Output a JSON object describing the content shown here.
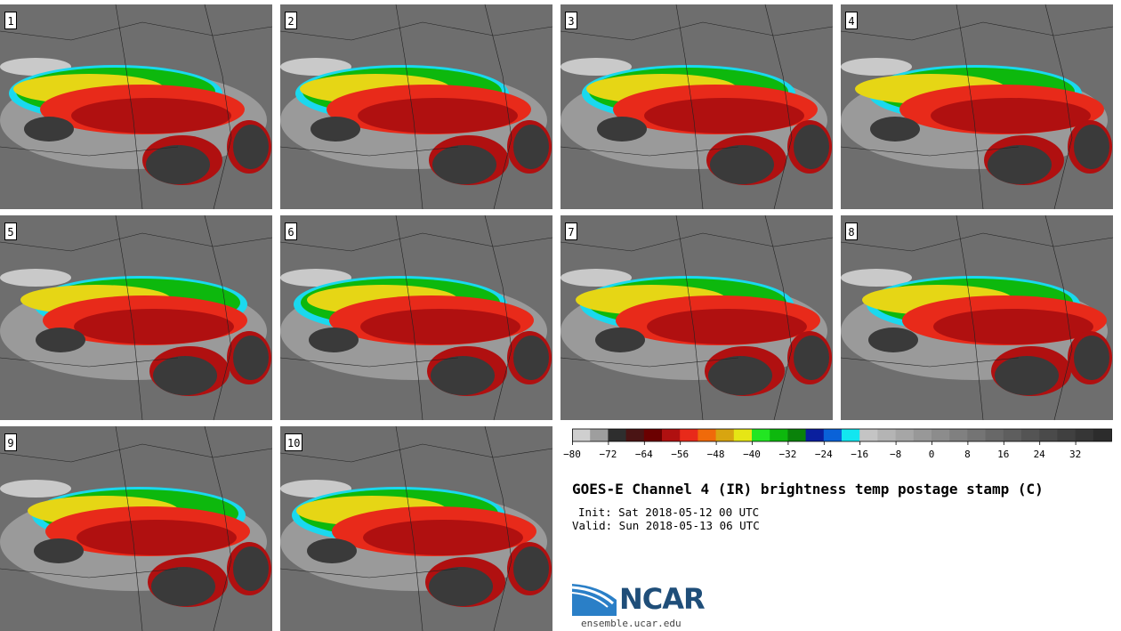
{
  "panels": [
    {
      "label": "1"
    },
    {
      "label": "2"
    },
    {
      "label": "3"
    },
    {
      "label": "4"
    },
    {
      "label": "5"
    },
    {
      "label": "6"
    },
    {
      "label": "7"
    },
    {
      "label": "8"
    },
    {
      "label": "9"
    },
    {
      "label": "10"
    }
  ],
  "colorbar": {
    "ticks": [
      "−80",
      "−72",
      "−64",
      "−56",
      "−48",
      "−40",
      "−32",
      "−24",
      "−16",
      "−8",
      "0",
      "8",
      "16",
      "24",
      "32"
    ],
    "colors": [
      "#cfcfcf",
      "#9e9e9e",
      "#2e2e2e",
      "#4a1414",
      "#6b0000",
      "#b01010",
      "#e82a1a",
      "#f06a0a",
      "#d8a510",
      "#e6e615",
      "#22e622",
      "#0db80d",
      "#0a820a",
      "#0a1f9e",
      "#0a62d8",
      "#12e6f0",
      "#c4c4c4",
      "#b4b4b4",
      "#a6a6a6",
      "#989898",
      "#8c8c8c",
      "#808080",
      "#747474",
      "#686868",
      "#5e5e5e",
      "#545454",
      "#4a4a4a",
      "#404040",
      "#363636",
      "#2c2c2c"
    ]
  },
  "title": "GOES-E Channel 4 (IR) brightness temp postage stamp (C)",
  "init": "Init: Sat 2018-05-12 00 UTC",
  "valid": "Valid: Sun 2018-05-13 06 UTC",
  "logo": {
    "text": "NCAR",
    "site": "ensemble.ucar.edu"
  }
}
